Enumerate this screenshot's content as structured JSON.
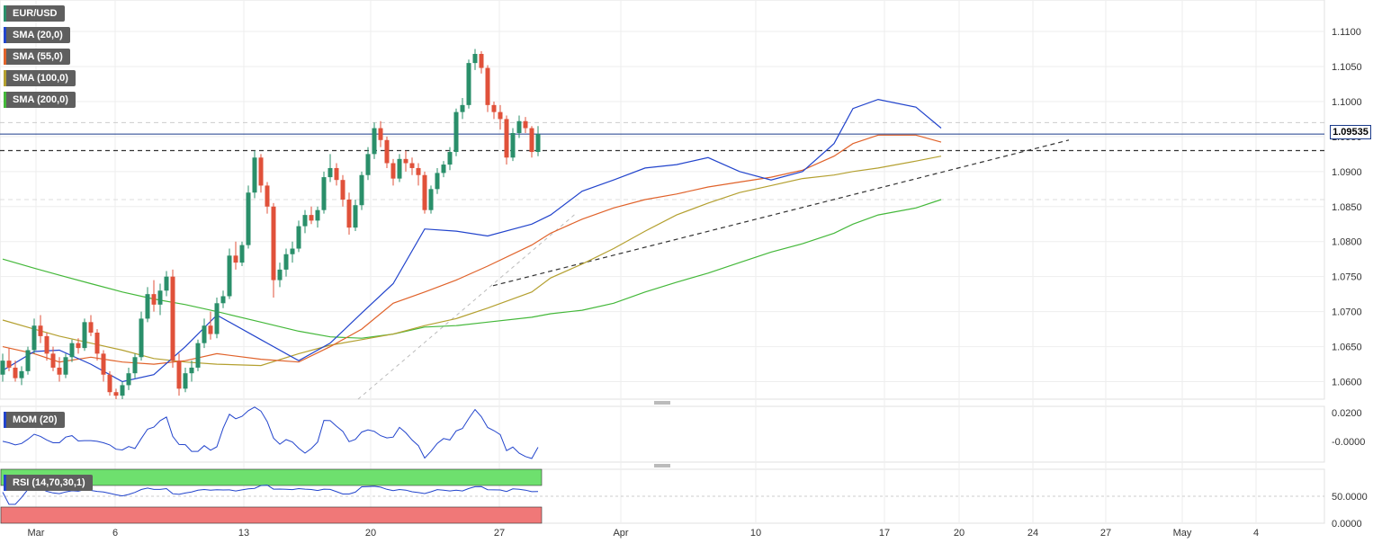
{
  "chart_data": [
    {
      "type": "candlestick",
      "panel": "price",
      "symbol": "EUR/USD",
      "indicators": [
        {
          "name": "SMA (20,0)",
          "color": "#2244cc"
        },
        {
          "name": "SMA (55,0)",
          "color": "#e0622a"
        },
        {
          "name": "SMA (100,0)",
          "color": "#b4a030"
        },
        {
          "name": "SMA (200,0)",
          "color": "#44b83a"
        }
      ],
      "ylim": [
        1.0575,
        1.1145
      ],
      "y_ticks": [
        "1.1100",
        "1.1050",
        "1.1000",
        "1.0950",
        "1.0900",
        "1.0850",
        "1.0800",
        "1.0750",
        "1.0700",
        "1.0650",
        "1.0600"
      ],
      "last_price": 1.09535,
      "last_price_label": "1.09535",
      "horizontal_levels": [
        1.097,
        1.093,
        1.086
      ],
      "trendline": [
        [
          "Mar 27",
          1.0737
        ],
        [
          "Apr 25",
          1.0945
        ]
      ],
      "sma_20": [
        [
          0,
          1.0616
        ],
        [
          5,
          1.0643
        ],
        [
          9,
          1.0645
        ],
        [
          14,
          1.0625
        ],
        [
          19,
          1.06
        ],
        [
          24,
          1.061
        ],
        [
          29,
          1.065
        ],
        [
          34,
          1.0695
        ],
        [
          41,
          1.066
        ],
        [
          47,
          1.063
        ],
        [
          52,
          1.0655
        ],
        [
          57,
          1.0698
        ],
        [
          62,
          1.074
        ],
        [
          67,
          1.0818
        ],
        [
          72,
          1.0815
        ],
        [
          77,
          1.0808
        ],
        [
          84,
          1.0825
        ],
        [
          87,
          1.0838
        ],
        [
          92,
          1.0872
        ],
        [
          97,
          1.0888
        ],
        [
          102,
          1.0905
        ],
        [
          107,
          1.091
        ],
        [
          112,
          1.092
        ],
        [
          117,
          1.09
        ],
        [
          122,
          1.0888
        ],
        [
          127,
          1.09
        ],
        [
          132,
          1.094
        ],
        [
          135,
          1.099
        ],
        [
          139,
          1.1003
        ],
        [
          145,
          1.0992
        ],
        [
          149,
          1.0962
        ]
      ],
      "sma_55": [
        [
          0,
          1.065
        ],
        [
          5,
          1.064
        ],
        [
          9,
          1.0628
        ],
        [
          14,
          1.0635
        ],
        [
          19,
          1.0628
        ],
        [
          24,
          1.0625
        ],
        [
          29,
          1.063
        ],
        [
          34,
          1.064
        ],
        [
          41,
          1.0632
        ],
        [
          47,
          1.0628
        ],
        [
          52,
          1.065
        ],
        [
          57,
          1.0675
        ],
        [
          62,
          1.0712
        ],
        [
          67,
          1.0728
        ],
        [
          72,
          1.0745
        ],
        [
          77,
          1.0765
        ],
        [
          84,
          1.0795
        ],
        [
          87,
          1.0812
        ],
        [
          92,
          1.0832
        ],
        [
          97,
          1.0848
        ],
        [
          102,
          1.086
        ],
        [
          107,
          1.0868
        ],
        [
          112,
          1.0878
        ],
        [
          117,
          1.0885
        ],
        [
          122,
          1.0892
        ],
        [
          127,
          1.0902
        ],
        [
          132,
          1.0922
        ],
        [
          135,
          1.094
        ],
        [
          139,
          1.0952
        ],
        [
          145,
          1.0952
        ],
        [
          149,
          1.0942
        ]
      ],
      "sma_100": [
        [
          0,
          1.0688
        ],
        [
          5,
          1.0675
        ],
        [
          9,
          1.0665
        ],
        [
          14,
          1.0655
        ],
        [
          19,
          1.0645
        ],
        [
          24,
          1.0633
        ],
        [
          29,
          1.0628
        ],
        [
          34,
          1.0625
        ],
        [
          41,
          1.0623
        ],
        [
          47,
          1.064
        ],
        [
          52,
          1.0652
        ],
        [
          57,
          1.066
        ],
        [
          62,
          1.0668
        ],
        [
          67,
          1.068
        ],
        [
          72,
          1.069
        ],
        [
          77,
          1.0705
        ],
        [
          84,
          1.0728
        ],
        [
          87,
          1.0748
        ],
        [
          92,
          1.0768
        ],
        [
          97,
          1.079
        ],
        [
          102,
          1.0815
        ],
        [
          107,
          1.0838
        ],
        [
          112,
          1.0855
        ],
        [
          117,
          1.087
        ],
        [
          122,
          1.088
        ],
        [
          127,
          1.089
        ],
        [
          132,
          1.0895
        ],
        [
          135,
          1.09
        ],
        [
          139,
          1.0905
        ],
        [
          145,
          1.0915
        ],
        [
          149,
          1.0922
        ]
      ],
      "sma_200": [
        [
          0,
          1.0775
        ],
        [
          5,
          1.0762
        ],
        [
          9,
          1.0752
        ],
        [
          14,
          1.074
        ],
        [
          19,
          1.0728
        ],
        [
          24,
          1.0718
        ],
        [
          29,
          1.071
        ],
        [
          34,
          1.07
        ],
        [
          41,
          1.0685
        ],
        [
          47,
          1.0672
        ],
        [
          52,
          1.0664
        ],
        [
          57,
          1.0662
        ],
        [
          62,
          1.0668
        ],
        [
          67,
          1.0678
        ],
        [
          72,
          1.068
        ],
        [
          77,
          1.0685
        ],
        [
          84,
          1.0692
        ],
        [
          87,
          1.0697
        ],
        [
          92,
          1.0702
        ],
        [
          97,
          1.0712
        ],
        [
          102,
          1.0728
        ],
        [
          107,
          1.0742
        ],
        [
          112,
          1.0755
        ],
        [
          117,
          1.077
        ],
        [
          122,
          1.0785
        ],
        [
          127,
          1.0797
        ],
        [
          132,
          1.0812
        ],
        [
          135,
          1.0825
        ],
        [
          139,
          1.0838
        ],
        [
          145,
          1.0848
        ],
        [
          149,
          1.086
        ]
      ],
      "candles_ohlc": [
        [
          1.061,
          1.064,
          1.06,
          1.063
        ],
        [
          1.063,
          1.0648,
          1.0615,
          1.062
        ],
        [
          1.062,
          1.063,
          1.06,
          1.0605
        ],
        [
          1.0605,
          1.0622,
          1.0595,
          1.0615
        ],
        [
          1.0615,
          1.065,
          1.061,
          1.0645
        ],
        [
          1.0645,
          1.069,
          1.064,
          1.068
        ],
        [
          1.068,
          1.0695,
          1.0655,
          1.0665
        ],
        [
          1.0665,
          1.067,
          1.063,
          1.064
        ],
        [
          1.064,
          1.065,
          1.0615,
          1.062
        ],
        [
          1.062,
          1.0635,
          1.06,
          1.061
        ],
        [
          1.061,
          1.064,
          1.0605,
          1.0635
        ],
        [
          1.0635,
          1.066,
          1.0628,
          1.0655
        ],
        [
          1.0655,
          1.0662,
          1.064,
          1.0648
        ],
        [
          1.0648,
          1.069,
          1.0644,
          1.0685
        ],
        [
          1.0685,
          1.0695,
          1.0665,
          1.067
        ],
        [
          1.067,
          1.0675,
          1.063,
          1.064
        ],
        [
          1.064,
          1.0645,
          1.06,
          1.061
        ],
        [
          1.061,
          1.0615,
          1.058,
          1.0585
        ],
        [
          1.0585,
          1.059,
          1.057,
          1.058
        ],
        [
          1.058,
          1.06,
          1.0575,
          1.0595
        ],
        [
          1.0595,
          1.062,
          1.0588,
          1.0612
        ],
        [
          1.0612,
          1.064,
          1.0605,
          1.0635
        ],
        [
          1.0635,
          1.07,
          1.063,
          1.069
        ],
        [
          1.069,
          1.0735,
          1.0685,
          1.0725
        ],
        [
          1.0725,
          1.0745,
          1.07,
          1.071
        ],
        [
          1.071,
          1.074,
          1.0695,
          1.073
        ],
        [
          1.073,
          1.0758,
          1.0722,
          1.075
        ],
        [
          1.075,
          1.076,
          1.062,
          1.063
        ],
        [
          1.063,
          1.064,
          1.058,
          1.059
        ],
        [
          1.059,
          1.062,
          1.0585,
          1.0612
        ],
        [
          1.0612,
          1.063,
          1.06,
          1.062
        ],
        [
          1.062,
          1.066,
          1.0615,
          1.0655
        ],
        [
          1.0655,
          1.069,
          1.0648,
          1.068
        ],
        [
          1.068,
          1.07,
          1.066,
          1.0668
        ],
        [
          1.0668,
          1.072,
          1.0662,
          1.0712
        ],
        [
          1.0712,
          1.073,
          1.0705,
          1.0722
        ],
        [
          1.0722,
          1.079,
          1.0718,
          1.078
        ],
        [
          1.078,
          1.08,
          1.076,
          1.077
        ],
        [
          1.077,
          1.08,
          1.0765,
          1.0795
        ],
        [
          1.0795,
          1.088,
          1.079,
          1.087
        ],
        [
          1.087,
          1.093,
          1.0862,
          1.092
        ],
        [
          1.092,
          1.0925,
          1.087,
          1.088
        ],
        [
          1.088,
          1.0885,
          1.084,
          1.085
        ],
        [
          1.085,
          1.0855,
          1.072,
          1.0745
        ],
        [
          1.0745,
          1.077,
          1.0735,
          1.076
        ],
        [
          1.076,
          1.079,
          1.075,
          1.0782
        ],
        [
          1.0782,
          1.08,
          1.077,
          1.079
        ],
        [
          1.079,
          1.083,
          1.0785,
          1.0822
        ],
        [
          1.0822,
          1.0845,
          1.0812,
          1.0838
        ],
        [
          1.0838,
          1.085,
          1.0825,
          1.083
        ],
        [
          1.083,
          1.085,
          1.082,
          1.0845
        ],
        [
          1.0845,
          1.09,
          1.084,
          1.0892
        ],
        [
          1.0892,
          1.0925,
          1.0885,
          1.0905
        ],
        [
          1.0905,
          1.0912,
          1.088,
          1.0888
        ],
        [
          1.0888,
          1.0895,
          1.085,
          1.086
        ],
        [
          1.086,
          1.087,
          1.081,
          1.082
        ],
        [
          1.082,
          1.086,
          1.0815,
          1.0852
        ],
        [
          1.0852,
          1.09,
          1.0845,
          1.0895
        ],
        [
          1.0895,
          1.0935,
          1.0888,
          1.0925
        ],
        [
          1.0925,
          1.097,
          1.0918,
          1.0962
        ],
        [
          1.0962,
          1.0972,
          1.0935,
          1.0945
        ],
        [
          1.0945,
          1.095,
          1.0905,
          1.0912
        ],
        [
          1.0912,
          1.0918,
          1.088,
          1.089
        ],
        [
          1.089,
          1.0925,
          1.0885,
          1.0918
        ],
        [
          1.0918,
          1.093,
          1.09,
          1.0912
        ],
        [
          1.0912,
          1.092,
          1.0895,
          1.0905
        ],
        [
          1.0905,
          1.0912,
          1.088,
          1.0895
        ],
        [
          1.0895,
          1.09,
          1.084,
          1.0845
        ],
        [
          1.0845,
          1.088,
          1.084,
          1.0875
        ],
        [
          1.0875,
          1.0905,
          1.0868,
          1.0898
        ],
        [
          1.0898,
          1.0915,
          1.0892,
          1.091
        ],
        [
          1.091,
          1.0935,
          1.0902,
          1.0928
        ],
        [
          1.0928,
          1.099,
          1.0922,
          1.0985
        ],
        [
          1.0985,
          1.1005,
          1.0975,
          1.0995
        ],
        [
          1.0995,
          1.106,
          1.099,
          1.1055
        ],
        [
          1.1055,
          1.1075,
          1.1045,
          1.1068
        ],
        [
          1.1068,
          1.1072,
          1.104,
          1.1048
        ],
        [
          1.1048,
          1.1052,
          1.0985,
          1.0995
        ],
        [
          1.0995,
          1.1,
          1.0975,
          1.0985
        ],
        [
          1.0985,
          1.0995,
          1.096,
          1.0975
        ],
        [
          1.0975,
          1.098,
          1.091,
          1.092
        ],
        [
          1.092,
          1.0962,
          1.0915,
          1.0955
        ],
        [
          1.0955,
          1.098,
          1.0948,
          1.0972
        ],
        [
          1.0972,
          1.0978,
          1.0955,
          1.0962
        ],
        [
          1.0962,
          1.0965,
          1.092,
          1.0928
        ],
        [
          1.0928,
          1.0965,
          1.0922,
          1.09535
        ]
      ]
    },
    {
      "type": "line",
      "panel": "momentum",
      "name": "MOM (20)",
      "y_ticks": [
        "0.0200",
        "-0.0000"
      ]
    },
    {
      "type": "line",
      "panel": "rsi",
      "name": "RSI (14,70,30,1)",
      "y_ticks": [
        "50.0000",
        "0.0000"
      ]
    }
  ],
  "x_axis_labels": [
    "Mar",
    "6",
    "13",
    "20",
    "27",
    "Apr",
    "10",
    "17",
    "20",
    "24",
    "27",
    "May",
    "4"
  ],
  "colors": {
    "bull": "#2a8f6a",
    "bear": "#e0513a",
    "sma20": "#2244cc",
    "sma55": "#e0622a",
    "sma100": "#b4a030",
    "sma200": "#44b83a",
    "indicator_line": "#2244cc",
    "rsi_overbought": "#6ee06e",
    "rsi_oversold": "#f07878",
    "price_line": "#1a3a8a"
  }
}
